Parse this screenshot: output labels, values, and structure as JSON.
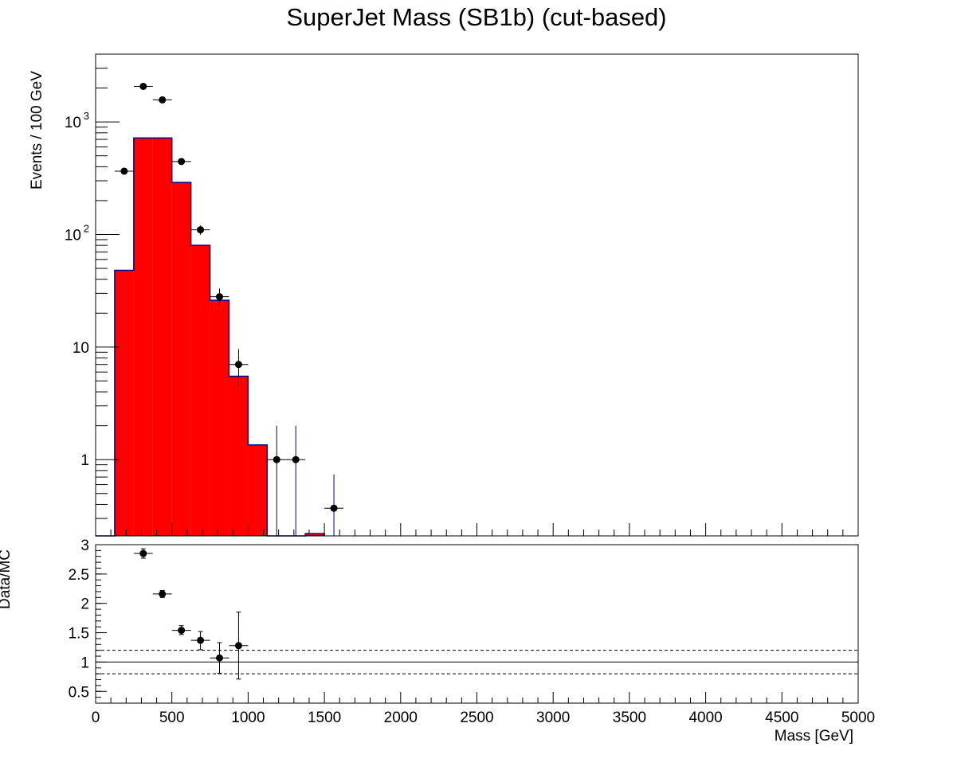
{
  "chart_data": [
    {
      "type": "bar",
      "panel": "main",
      "title": "SuperJet Mass (SB1b) (cut-based)",
      "xlabel": "",
      "ylabel": "Events / 100 GeV",
      "y_scale": "log",
      "xlim": [
        0,
        5000
      ],
      "ylim": [
        0.21,
        4000
      ],
      "grid": false,
      "y_ticks": [
        {
          "value": 1,
          "label": "1",
          "exp": ""
        },
        {
          "value": 10,
          "label": "10",
          "exp": ""
        },
        {
          "value": 100,
          "label": "10",
          "exp": "2"
        },
        {
          "value": 1000,
          "label": "10",
          "exp": "3"
        }
      ],
      "series": [
        {
          "kind": "histogram",
          "fill": "#ff0000",
          "line": "#00008b",
          "edges": [
            0,
            125,
            250,
            375,
            500,
            625,
            750,
            875,
            1000,
            1125,
            1250,
            1375,
            1500
          ],
          "values": [
            0,
            48,
            720,
            720,
            290,
            80,
            26,
            5.5,
            1.35,
            0,
            0,
            0.22
          ]
        },
        {
          "kind": "points",
          "marker": "#000000",
          "x": [
            187.5,
            312.5,
            437.5,
            562.5,
            687.5,
            812.5,
            937.5,
            1187.5,
            1312.5,
            1562.5
          ],
          "y": [
            365,
            2070,
            1570,
            445,
            110,
            28,
            7,
            1,
            1,
            0.37
          ],
          "y_low": [
            346,
            2025,
            1530,
            424,
            99.5,
            22.9,
            4.4,
            0,
            0,
            0
          ],
          "y_high": [
            384,
            2115,
            1610,
            466,
            120.5,
            33.1,
            9.6,
            2,
            2,
            0.74
          ],
          "x_err": 62.5
        }
      ]
    },
    {
      "type": "scatter",
      "panel": "ratio",
      "xlabel": "Mass [GeV]",
      "ylabel": "Data/MC",
      "xlim": [
        0,
        5000
      ],
      "ylim": [
        0.3,
        3.0
      ],
      "grid": false,
      "x_ticks": [
        0,
        500,
        1000,
        1500,
        2000,
        2500,
        3000,
        3500,
        4000,
        4500,
        5000
      ],
      "y_ticks": [
        0.5,
        1,
        1.5,
        2,
        2.5,
        3
      ],
      "reference_lines": [
        {
          "y": 1.0,
          "style": "solid"
        },
        {
          "y": 1.2,
          "style": "dashed"
        },
        {
          "y": 0.8,
          "style": "dashed"
        }
      ],
      "series": [
        {
          "marker": "#000000",
          "x": [
            312.5,
            437.5,
            562.5,
            687.5,
            812.5,
            937.5
          ],
          "y": [
            2.85,
            2.16,
            1.54,
            1.37,
            1.07,
            1.28
          ],
          "y_low": [
            2.77,
            2.1,
            1.47,
            1.21,
            0.81,
            0.71
          ],
          "y_high": [
            2.93,
            2.22,
            1.62,
            1.52,
            1.33,
            1.85
          ],
          "x_err": 62.5
        }
      ]
    }
  ]
}
